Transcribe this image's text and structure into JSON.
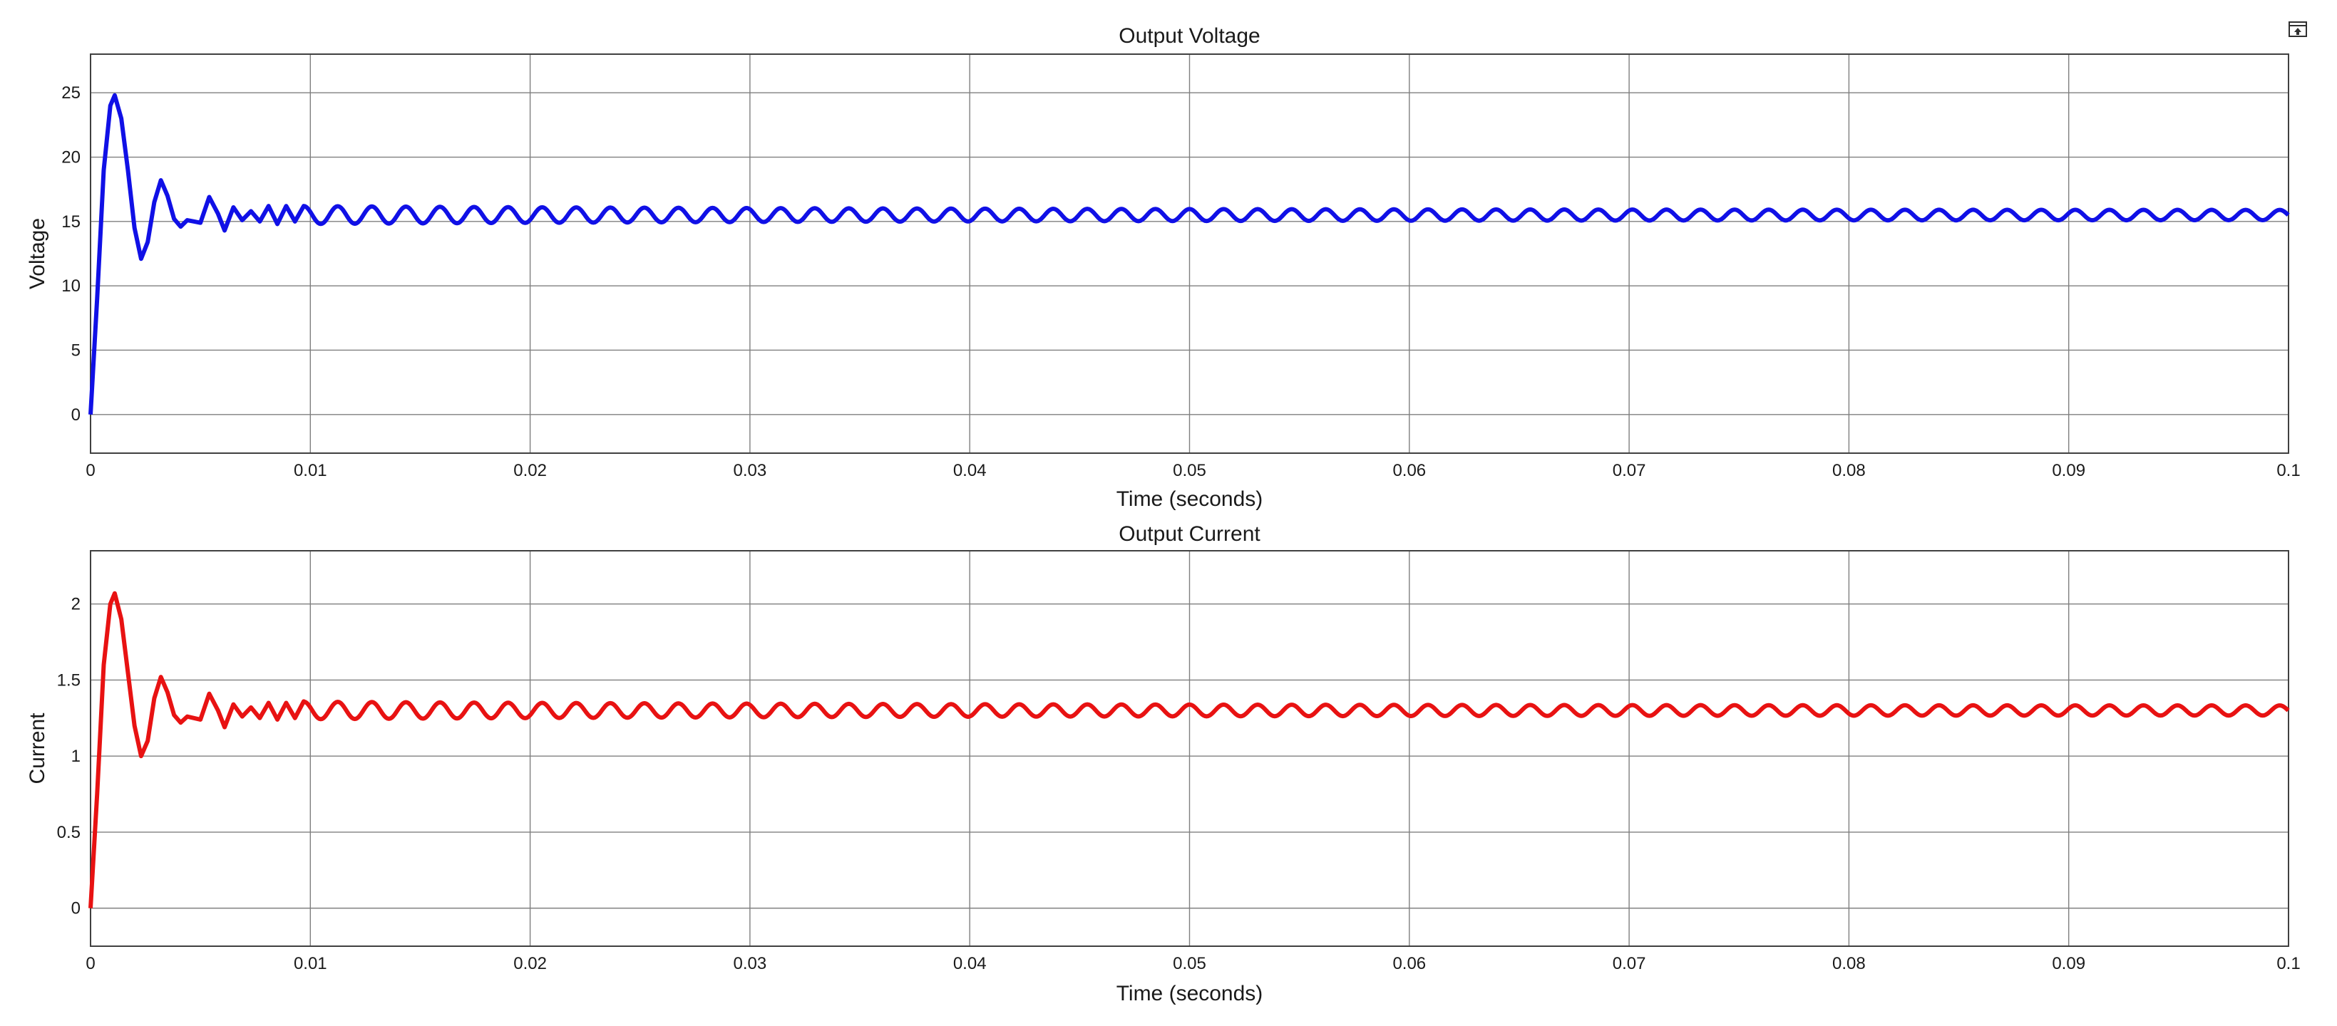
{
  "figure": {
    "restore_icon": "restore-layout-icon"
  },
  "chart_data": [
    {
      "type": "line",
      "title": "Output Voltage",
      "xlabel": "Time (seconds)",
      "ylabel": "Voltage",
      "xlim": [
        0,
        0.1
      ],
      "ylim": [
        -3,
        28
      ],
      "xticks": [
        0,
        0.01,
        0.02,
        0.03,
        0.04,
        0.05,
        0.06,
        0.07,
        0.08,
        0.09,
        0.1
      ],
      "xtick_labels": [
        "0",
        "0.01",
        "0.02",
        "0.03",
        "0.04",
        "0.05",
        "0.06",
        "0.07",
        "0.08",
        "0.09",
        "0.1"
      ],
      "yticks": [
        0,
        5,
        10,
        15,
        20,
        25
      ],
      "ytick_labels": [
        "0",
        "5",
        "10",
        "15",
        "20",
        "25"
      ],
      "grid": true,
      "color": "#1010e6",
      "series": [
        {
          "x": [
            0,
            0.0003,
            0.0006,
            0.0009,
            0.0011,
            0.0014,
            0.0017,
            0.002,
            0.0023,
            0.0026,
            0.0029,
            0.0032,
            0.0035,
            0.0038,
            0.0041,
            0.0044,
            0.0047,
            0.005,
            0.0054,
            0.0058,
            0.0061,
            0.0065,
            0.0069,
            0.0073,
            0.0077,
            0.0081,
            0.0085,
            0.0089,
            0.0093,
            0.0097,
            0.01,
            0.0106,
            0.0112,
            0.0118,
            0.0124,
            0.013,
            0.02,
            0.03,
            0.04,
            0.05,
            0.06,
            0.07,
            0.08,
            0.09,
            0.1
          ],
          "y": [
            0,
            9,
            19,
            24,
            24.8,
            23,
            19,
            14.5,
            12.1,
            13.4,
            16.5,
            18.2,
            17,
            15.2,
            14.6,
            15.1,
            15.0,
            14.9,
            16.9,
            15.6,
            14.3,
            16.1,
            15.1,
            15.8,
            15.0,
            16.2,
            14.8,
            16.2,
            15.0,
            16.2,
            15.5,
            15.5,
            15.5,
            15.5,
            15.5,
            15.5,
            15.5,
            15.5,
            15.5,
            15.5,
            15.5,
            15.5,
            15.5,
            15.5,
            15.5
          ],
          "steady_ripple_amplitude": 0.7,
          "ripple_period": 0.00155
        }
      ]
    },
    {
      "type": "line",
      "title": "Output Current",
      "xlabel": "Time (seconds)",
      "ylabel": "Current",
      "xlim": [
        0,
        0.1
      ],
      "ylim": [
        -0.25,
        2.35
      ],
      "xticks": [
        0,
        0.01,
        0.02,
        0.03,
        0.04,
        0.05,
        0.06,
        0.07,
        0.08,
        0.09,
        0.1
      ],
      "xtick_labels": [
        "0",
        "0.01",
        "0.02",
        "0.03",
        "0.04",
        "0.05",
        "0.06",
        "0.07",
        "0.08",
        "0.09",
        "0.1"
      ],
      "yticks": [
        0,
        0.5,
        1,
        1.5,
        2
      ],
      "ytick_labels": [
        "0",
        "0.5",
        "1",
        "1.5",
        "2"
      ],
      "grid": true,
      "color": "#e81212",
      "series": [
        {
          "x": [
            0,
            0.0003,
            0.0006,
            0.0009,
            0.0011,
            0.0014,
            0.0017,
            0.002,
            0.0023,
            0.0026,
            0.0029,
            0.0032,
            0.0035,
            0.0038,
            0.0041,
            0.0044,
            0.0047,
            0.005,
            0.0054,
            0.0058,
            0.0061,
            0.0065,
            0.0069,
            0.0073,
            0.0077,
            0.0081,
            0.0085,
            0.0089,
            0.0093,
            0.0097,
            0.01,
            0.0106,
            0.0112,
            0.0118,
            0.0124,
            0.013,
            0.02,
            0.03,
            0.04,
            0.05,
            0.06,
            0.07,
            0.08,
            0.09,
            0.1
          ],
          "y": [
            0,
            0.75,
            1.6,
            2.0,
            2.07,
            1.9,
            1.55,
            1.2,
            1.0,
            1.1,
            1.38,
            1.52,
            1.42,
            1.27,
            1.22,
            1.26,
            1.25,
            1.24,
            1.41,
            1.3,
            1.19,
            1.34,
            1.26,
            1.32,
            1.25,
            1.35,
            1.24,
            1.35,
            1.25,
            1.36,
            1.3,
            1.3,
            1.3,
            1.3,
            1.3,
            1.3,
            1.3,
            1.3,
            1.3,
            1.3,
            1.3,
            1.3,
            1.3,
            1.3,
            1.3
          ],
          "steady_ripple_amplitude": 0.058,
          "ripple_period": 0.00155
        }
      ]
    }
  ]
}
